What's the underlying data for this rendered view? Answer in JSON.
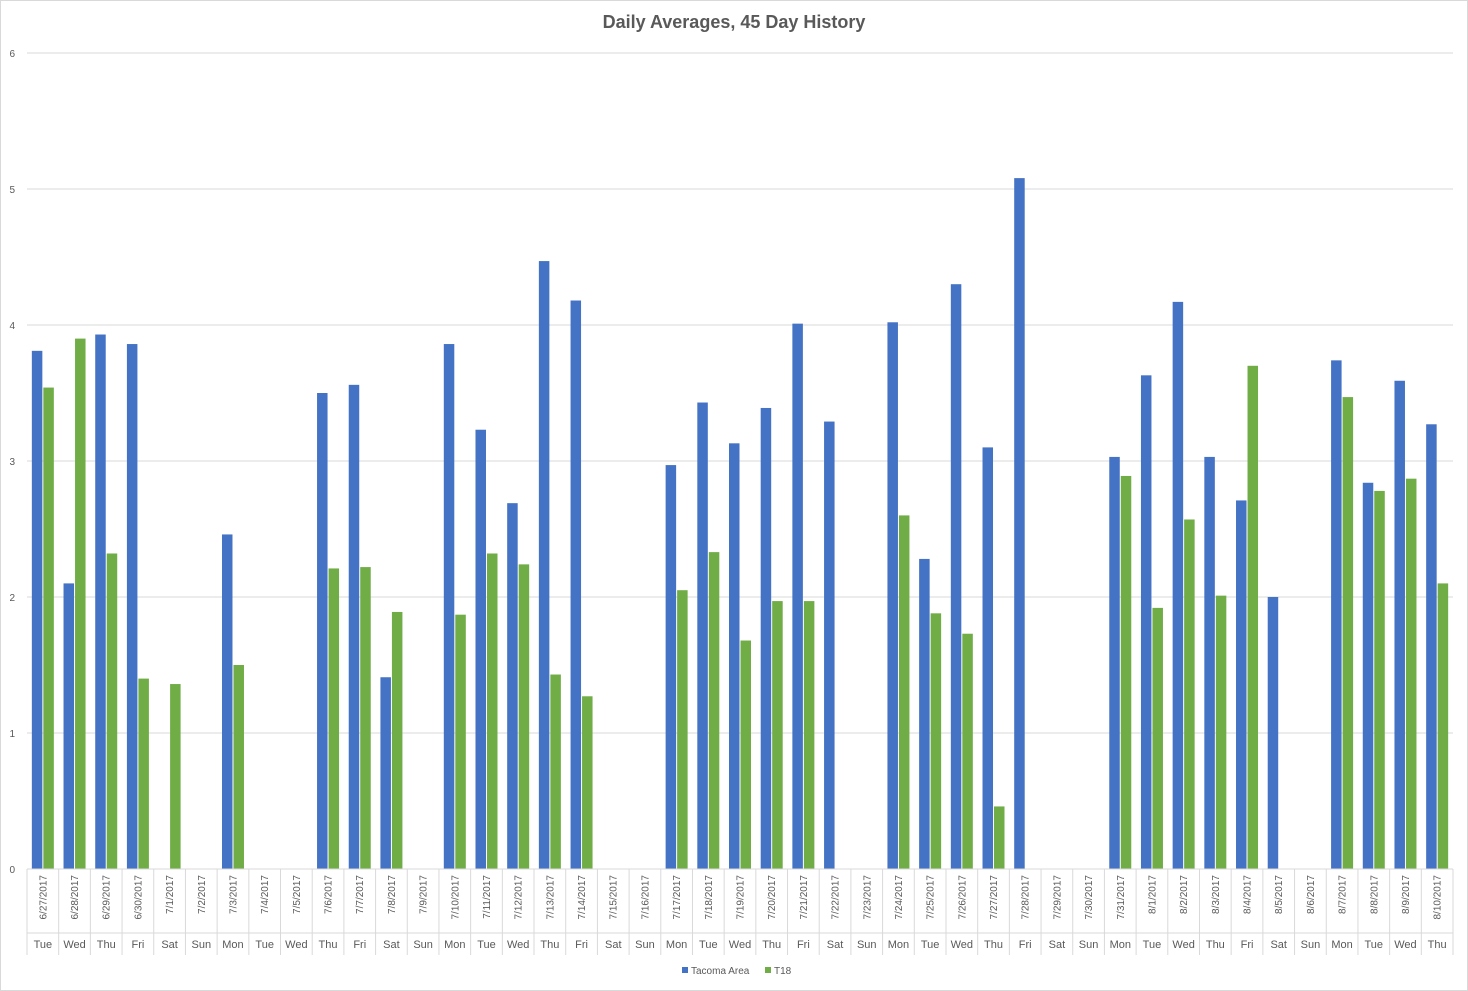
{
  "chart_data": {
    "type": "bar",
    "title": "Daily Averages, 45 Day History",
    "xlabel": "",
    "ylabel": "",
    "ylim": [
      0,
      6
    ],
    "yticks": [
      "0",
      "1",
      "2",
      "3",
      "4",
      "5",
      "6"
    ],
    "grid": true,
    "legend_position": "bottom",
    "categories": [
      "6/27/2017",
      "6/28/2017",
      "6/29/2017",
      "6/30/2017",
      "7/1/2017",
      "7/2/2017",
      "7/3/2017",
      "7/4/2017",
      "7/5/2017",
      "7/6/2017",
      "7/7/2017",
      "7/8/2017",
      "7/9/2017",
      "7/10/2017",
      "7/11/2017",
      "7/12/2017",
      "7/13/2017",
      "7/14/2017",
      "7/15/2017",
      "7/16/2017",
      "7/17/2017",
      "7/18/2017",
      "7/19/2017",
      "7/20/2017",
      "7/21/2017",
      "7/22/2017",
      "7/23/2017",
      "7/24/2017",
      "7/25/2017",
      "7/26/2017",
      "7/27/2017",
      "7/28/2017",
      "7/29/2017",
      "7/30/2017",
      "7/31/2017",
      "8/1/2017",
      "8/2/2017",
      "8/3/2017",
      "8/4/2017",
      "8/5/2017",
      "8/6/2017",
      "8/7/2017",
      "8/8/2017",
      "8/9/2017",
      "8/10/2017"
    ],
    "weekdays": [
      "Tue",
      "Wed",
      "Thu",
      "Fri",
      "Sat",
      "Sun",
      "Mon",
      "Tue",
      "Wed",
      "Thu",
      "Fri",
      "Sat",
      "Sun",
      "Mon",
      "Tue",
      "Wed",
      "Thu",
      "Fri",
      "Sat",
      "Sun",
      "Mon",
      "Tue",
      "Wed",
      "Thu",
      "Fri",
      "Sat",
      "Sun",
      "Mon",
      "Tue",
      "Wed",
      "Thu",
      "Fri",
      "Sat",
      "Sun",
      "Mon",
      "Tue",
      "Wed",
      "Thu",
      "Fri",
      "Sat",
      "Sun",
      "Mon",
      "Tue",
      "Wed",
      "Thu"
    ],
    "series": [
      {
        "name": "Tacoma Area",
        "color": "#4472c4",
        "values": [
          3.81,
          2.1,
          3.93,
          3.86,
          null,
          null,
          2.46,
          null,
          null,
          3.5,
          3.56,
          1.41,
          null,
          3.86,
          3.23,
          2.69,
          4.47,
          4.18,
          null,
          null,
          2.97,
          3.43,
          3.13,
          3.39,
          4.01,
          3.29,
          null,
          4.02,
          2.28,
          4.3,
          3.1,
          5.08,
          null,
          null,
          3.03,
          3.63,
          4.17,
          3.03,
          2.71,
          2.0,
          null,
          3.74,
          2.84,
          3.59,
          3.27
        ]
      },
      {
        "name": "T18",
        "color": "#70ad47",
        "values": [
          3.54,
          3.9,
          2.32,
          1.4,
          1.36,
          null,
          1.5,
          null,
          null,
          2.21,
          2.22,
          1.89,
          null,
          1.87,
          2.32,
          2.24,
          1.43,
          1.27,
          null,
          null,
          2.05,
          2.33,
          1.68,
          1.97,
          1.97,
          null,
          null,
          2.6,
          1.88,
          1.73,
          0.46,
          null,
          null,
          null,
          2.89,
          1.92,
          2.57,
          2.01,
          3.7,
          null,
          null,
          3.47,
          2.78,
          2.87,
          2.1
        ]
      }
    ]
  }
}
